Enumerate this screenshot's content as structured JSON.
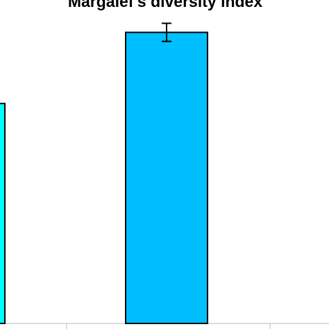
{
  "chart_data": {
    "type": "bar",
    "title": "Margalef's diversity index",
    "categories": [
      "",
      ""
    ],
    "values": [
      6.8,
      9.0
    ],
    "error": [
      null,
      0.28
    ],
    "bar_colors": [
      "#00ffff",
      "#00bfff"
    ],
    "ylim": [
      0,
      10
    ],
    "grid": false,
    "legend": "none"
  },
  "colors": {
    "outline": "#000000",
    "axis": "#bbbbbb"
  }
}
